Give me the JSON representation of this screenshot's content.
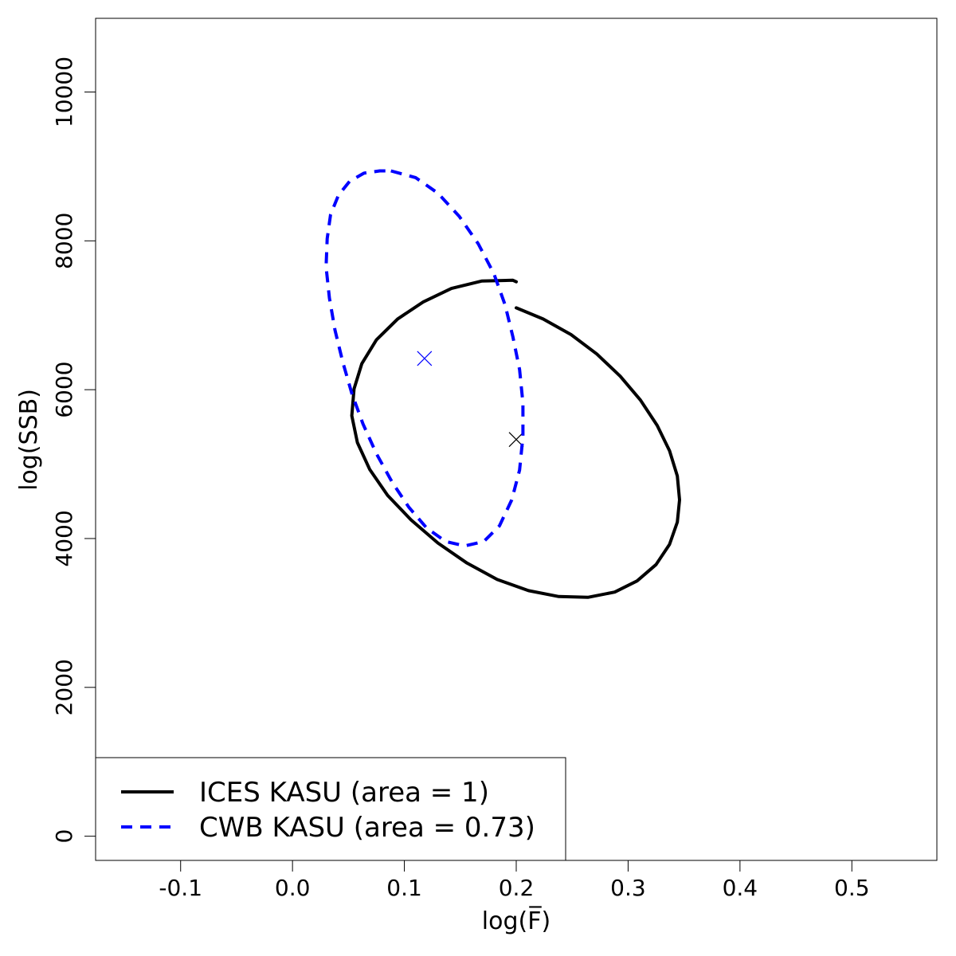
{
  "chart_data": {
    "type": "line",
    "title": "",
    "xlabel": "log(F̅)",
    "ylabel": "log(SSB)",
    "xlim": [
      -0.176,
      0.576
    ],
    "ylim": [
      -325,
      10990
    ],
    "xticks": [
      -0.1,
      0.0,
      0.1,
      0.2,
      0.3,
      0.4,
      0.5
    ],
    "xtick_labels": [
      "-0.1",
      "0.0",
      "0.1",
      "0.2",
      "0.3",
      "0.4",
      "0.5"
    ],
    "yticks": [
      0,
      2000,
      4000,
      6000,
      8000,
      10000
    ],
    "ytick_labels": [
      "0",
      "2000",
      "4000",
      "6000",
      "8000",
      "10000"
    ],
    "grid": false,
    "legend_position": "bottom-left",
    "series": [
      {
        "name": "ICES KASU (area = 1)",
        "style": "solid",
        "color": "#000000",
        "center": {
          "x": 0.2,
          "y": 5330
        },
        "x": [
          0.2,
          0.224,
          0.249,
          0.272,
          0.293,
          0.311,
          0.326,
          0.337,
          0.344,
          0.346,
          0.344,
          0.337,
          0.325,
          0.308,
          0.288,
          0.264,
          0.238,
          0.211,
          0.183,
          0.156,
          0.13,
          0.106,
          0.085,
          0.069,
          0.058,
          0.053,
          0.055,
          0.062,
          0.075,
          0.094,
          0.117,
          0.142,
          0.169,
          0.197,
          0.2
        ],
        "y": [
          7100,
          6950,
          6740,
          6480,
          6180,
          5860,
          5520,
          5180,
          4840,
          4520,
          4220,
          3920,
          3650,
          3430,
          3280,
          3210,
          3220,
          3300,
          3450,
          3670,
          3940,
          4250,
          4580,
          4930,
          5290,
          5650,
          6010,
          6350,
          6670,
          6950,
          7180,
          7360,
          7460,
          7470,
          7450
        ]
      },
      {
        "name": "CWB KASU (area = 0.73)",
        "style": "dashed",
        "color": "#0000ff",
        "center": {
          "x": 0.118,
          "y": 6420
        },
        "x": [
          0.088,
          0.11,
          0.13,
          0.149,
          0.166,
          0.18,
          0.19,
          0.197,
          0.203,
          0.206,
          0.206,
          0.203,
          0.196,
          0.185,
          0.171,
          0.154,
          0.137,
          0.12,
          0.104,
          0.089,
          0.075,
          0.063,
          0.053,
          0.045,
          0.038,
          0.033,
          0.03,
          0.031,
          0.034,
          0.041,
          0.051,
          0.064,
          0.078,
          0.088
        ],
        "y": [
          8940,
          8850,
          8640,
          8330,
          7960,
          7560,
          7140,
          6710,
          6270,
          5820,
          5370,
          4920,
          4520,
          4170,
          3960,
          3900,
          3960,
          4140,
          4420,
          4760,
          5140,
          5540,
          5950,
          6370,
          6800,
          7230,
          7650,
          8030,
          8350,
          8610,
          8800,
          8910,
          8940,
          8940
        ]
      }
    ]
  },
  "legend": {
    "entries": [
      "ICES KASU (area = 1)",
      "CWB KASU (area = 0.73)"
    ]
  }
}
